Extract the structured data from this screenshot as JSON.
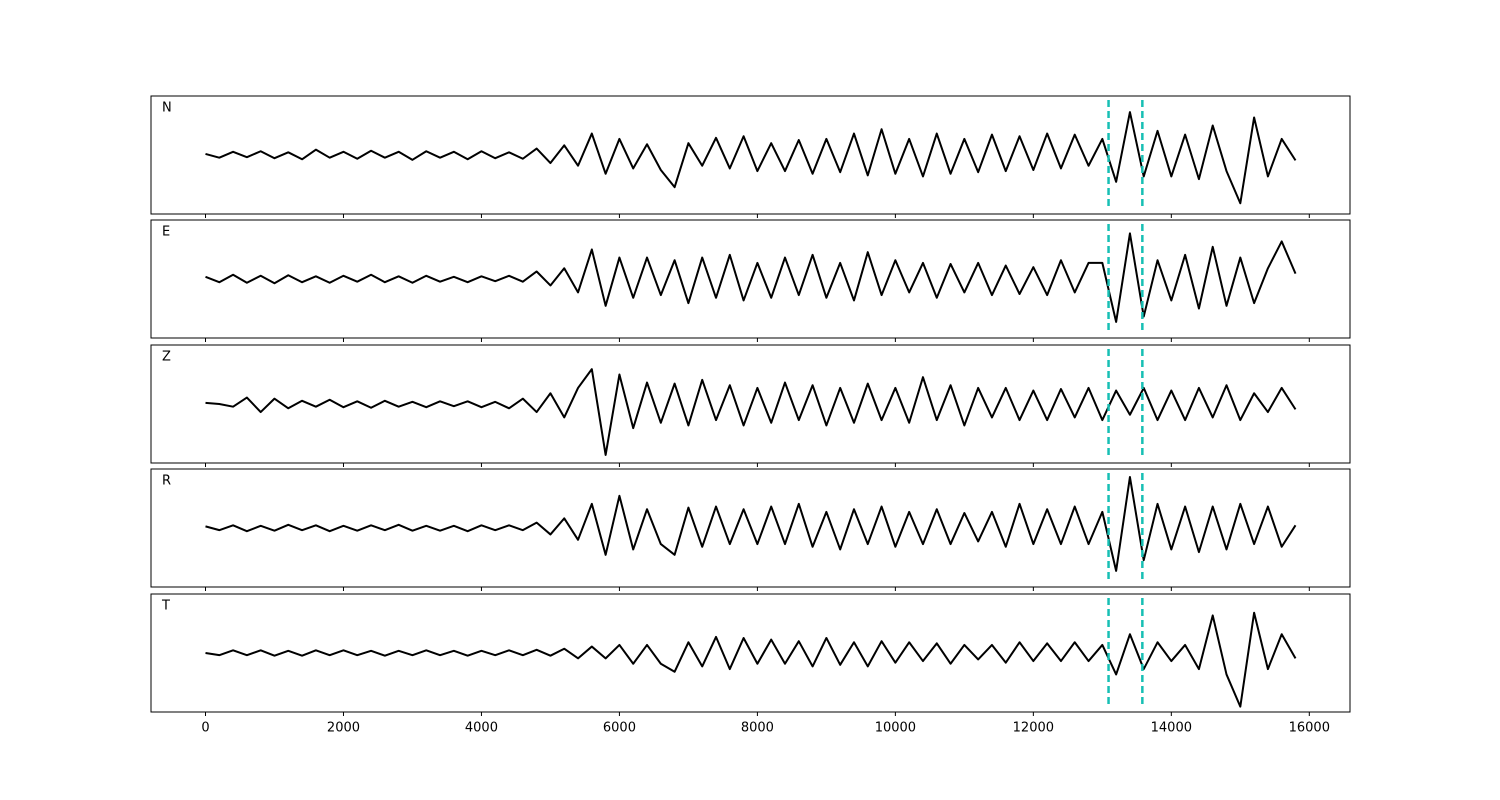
{
  "chart_data": [
    {
      "type": "line",
      "title": "N",
      "color": "#000000",
      "vline_color": "#17bfb4",
      "vlines": [
        13090,
        13580
      ],
      "xlim": [
        -790,
        16590
      ],
      "ylim": [
        -1.1,
        1.1
      ],
      "xticks": [
        0,
        2000,
        4000,
        6000,
        8000,
        10000,
        12000,
        14000,
        16000
      ],
      "xtick_labels": false,
      "x": [
        0,
        200,
        400,
        600,
        800,
        1000,
        1200,
        1400,
        1600,
        1800,
        2000,
        2200,
        2400,
        2600,
        2800,
        3000,
        3200,
        3400,
        3600,
        3800,
        4000,
        4200,
        4400,
        4600,
        4800,
        5000,
        5200,
        5400,
        5600,
        5800,
        6000,
        6200,
        6400,
        6600,
        6800,
        7000,
        7200,
        7400,
        7600,
        7800,
        8000,
        8200,
        8400,
        8600,
        8800,
        9000,
        9200,
        9400,
        9600,
        9800,
        10000,
        10200,
        10400,
        10600,
        10800,
        11000,
        11200,
        11400,
        11600,
        11800,
        12000,
        12200,
        12400,
        12600,
        12800,
        13000,
        13200,
        13400,
        13600,
        13800,
        14000,
        14200,
        14400,
        14600,
        14800,
        15000,
        15200,
        15400,
        15600,
        15800
      ],
      "values": [
        0.02,
        -0.05,
        0.06,
        -0.04,
        0.07,
        -0.06,
        0.05,
        -0.08,
        0.1,
        -0.05,
        0.06,
        -0.07,
        0.08,
        -0.05,
        0.06,
        -0.09,
        0.07,
        -0.05,
        0.06,
        -0.08,
        0.07,
        -0.06,
        0.05,
        -0.07,
        0.12,
        -0.15,
        0.18,
        -0.2,
        0.4,
        -0.35,
        0.3,
        -0.25,
        0.2,
        -0.28,
        -0.6,
        0.22,
        -0.2,
        0.32,
        -0.25,
        0.35,
        -0.3,
        0.22,
        -0.3,
        0.28,
        -0.35,
        0.3,
        -0.32,
        0.4,
        -0.38,
        0.48,
        -0.35,
        0.3,
        -0.4,
        0.4,
        -0.35,
        0.3,
        -0.32,
        0.38,
        -0.3,
        0.35,
        -0.28,
        0.4,
        -0.25,
        0.38,
        -0.2,
        0.3,
        -0.5,
        0.8,
        -0.4,
        0.45,
        -0.4,
        0.38,
        -0.45,
        0.55,
        -0.3,
        -0.9,
        0.7,
        -0.4,
        0.3,
        -0.1
      ]
    },
    {
      "type": "line",
      "title": "E",
      "color": "#000000",
      "vline_color": "#17bfb4",
      "vlines": [
        13090,
        13580
      ],
      "xlim": [
        -790,
        16590
      ],
      "ylim": [
        -1.1,
        1.1
      ],
      "xticks": [
        0,
        2000,
        4000,
        6000,
        8000,
        10000,
        12000,
        14000,
        16000
      ],
      "xtick_labels": false,
      "x": [
        0,
        200,
        400,
        600,
        800,
        1000,
        1200,
        1400,
        1600,
        1800,
        2000,
        2200,
        2400,
        2600,
        2800,
        3000,
        3200,
        3400,
        3600,
        3800,
        4000,
        4200,
        4400,
        4600,
        4800,
        5000,
        5200,
        5400,
        5600,
        5800,
        6000,
        6200,
        6400,
        6600,
        6800,
        7000,
        7200,
        7400,
        7600,
        7800,
        8000,
        8200,
        8400,
        8600,
        8800,
        9000,
        9200,
        9400,
        9600,
        9800,
        10000,
        10200,
        10400,
        10600,
        10800,
        11000,
        11200,
        11400,
        11600,
        11800,
        12000,
        12200,
        12400,
        12600,
        12800,
        13000,
        13200,
        13400,
        13600,
        13800,
        14000,
        14200,
        14400,
        14600,
        14800,
        15000,
        15200,
        15400,
        15600,
        15800
      ],
      "values": [
        0.04,
        -0.06,
        0.08,
        -0.07,
        0.06,
        -0.08,
        0.07,
        -0.06,
        0.05,
        -0.07,
        0.06,
        -0.05,
        0.08,
        -0.06,
        0.05,
        -0.07,
        0.06,
        -0.05,
        0.04,
        -0.06,
        0.05,
        -0.04,
        0.06,
        -0.05,
        0.14,
        -0.12,
        0.2,
        -0.25,
        0.55,
        -0.5,
        0.4,
        -0.35,
        0.4,
        -0.3,
        0.35,
        -0.45,
        0.4,
        -0.35,
        0.45,
        -0.4,
        0.3,
        -0.35,
        0.4,
        -0.3,
        0.45,
        -0.35,
        0.3,
        -0.4,
        0.5,
        -0.3,
        0.35,
        -0.25,
        0.3,
        -0.35,
        0.28,
        -0.25,
        0.3,
        -0.3,
        0.25,
        -0.28,
        0.22,
        -0.3,
        0.35,
        -0.25,
        0.3,
        0.3,
        -0.8,
        0.85,
        -0.7,
        0.35,
        -0.4,
        0.45,
        -0.55,
        0.6,
        -0.5,
        0.4,
        -0.45,
        0.2,
        0.7,
        0.1
      ]
    },
    {
      "type": "line",
      "title": "Z",
      "color": "#000000",
      "vline_color": "#17bfb4",
      "vlines": [
        13090,
        13580
      ],
      "xlim": [
        -790,
        16590
      ],
      "ylim": [
        -1.1,
        1.1
      ],
      "xticks": [
        0,
        2000,
        4000,
        6000,
        8000,
        10000,
        12000,
        14000,
        16000
      ],
      "xtick_labels": false,
      "x": [
        0,
        200,
        400,
        600,
        800,
        1000,
        1200,
        1400,
        1600,
        1800,
        2000,
        2200,
        2400,
        2600,
        2800,
        3000,
        3200,
        3400,
        3600,
        3800,
        4000,
        4200,
        4400,
        4600,
        4800,
        5000,
        5200,
        5400,
        5600,
        5800,
        6000,
        6200,
        6400,
        6600,
        6800,
        7000,
        7200,
        7400,
        7600,
        7800,
        8000,
        8200,
        8400,
        8600,
        8800,
        9000,
        9200,
        9400,
        9600,
        9800,
        10000,
        10200,
        10400,
        10600,
        10800,
        11000,
        11200,
        11400,
        11600,
        11800,
        12000,
        12200,
        12400,
        12600,
        12800,
        13000,
        13200,
        13400,
        13600,
        13800,
        14000,
        14200,
        14400,
        14600,
        14800,
        15000,
        15200,
        15400,
        15600,
        15800
      ],
      "values": [
        0.02,
        0.0,
        -0.05,
        0.12,
        -0.15,
        0.1,
        -0.08,
        0.06,
        -0.05,
        0.08,
        -0.06,
        0.05,
        -0.07,
        0.06,
        -0.05,
        0.04,
        -0.06,
        0.05,
        -0.04,
        0.05,
        -0.06,
        0.04,
        -0.08,
        0.1,
        -0.15,
        0.2,
        -0.25,
        0.3,
        0.65,
        -0.95,
        0.55,
        -0.45,
        0.4,
        -0.35,
        0.38,
        -0.4,
        0.45,
        -0.3,
        0.35,
        -0.4,
        0.3,
        -0.35,
        0.4,
        -0.3,
        0.35,
        -0.4,
        0.3,
        -0.35,
        0.38,
        -0.3,
        0.3,
        -0.35,
        0.5,
        -0.3,
        0.35,
        -0.4,
        0.3,
        -0.25,
        0.3,
        -0.3,
        0.25,
        -0.3,
        0.28,
        -0.25,
        0.3,
        -0.3,
        0.25,
        -0.2,
        0.3,
        -0.3,
        0.25,
        -0.3,
        0.3,
        -0.25,
        0.35,
        -0.3,
        0.2,
        -0.15,
        0.3,
        -0.1
      ]
    },
    {
      "type": "line",
      "title": "R",
      "color": "#000000",
      "vline_color": "#17bfb4",
      "vlines": [
        13090,
        13580
      ],
      "xlim": [
        -790,
        16590
      ],
      "ylim": [
        -1.1,
        1.1
      ],
      "xticks": [
        0,
        2000,
        4000,
        6000,
        8000,
        10000,
        12000,
        14000,
        16000
      ],
      "xtick_labels": false,
      "x": [
        0,
        200,
        400,
        600,
        800,
        1000,
        1200,
        1400,
        1600,
        1800,
        2000,
        2200,
        2400,
        2600,
        2800,
        3000,
        3200,
        3400,
        3600,
        3800,
        4000,
        4200,
        4400,
        4600,
        4800,
        5000,
        5200,
        5400,
        5600,
        5800,
        6000,
        6200,
        6400,
        6600,
        6800,
        7000,
        7200,
        7400,
        7600,
        7800,
        8000,
        8200,
        8400,
        8600,
        8800,
        9000,
        9200,
        9400,
        9600,
        9800,
        10000,
        10200,
        10400,
        10600,
        10800,
        11000,
        11200,
        11400,
        11600,
        11800,
        12000,
        12200,
        12400,
        12600,
        12800,
        13000,
        13200,
        13400,
        13600,
        13800,
        14000,
        14200,
        14400,
        14600,
        14800,
        15000,
        15200,
        15400,
        15600,
        15800
      ],
      "values": [
        0.03,
        -0.04,
        0.05,
        -0.06,
        0.04,
        -0.05,
        0.06,
        -0.04,
        0.05,
        -0.06,
        0.04,
        -0.05,
        0.05,
        -0.04,
        0.06,
        -0.05,
        0.04,
        -0.05,
        0.04,
        -0.06,
        0.05,
        -0.04,
        0.05,
        -0.04,
        0.1,
        -0.12,
        0.18,
        -0.22,
        0.45,
        -0.5,
        0.6,
        -0.4,
        0.35,
        -0.3,
        -0.5,
        0.38,
        -0.35,
        0.4,
        -0.3,
        0.35,
        -0.3,
        0.4,
        -0.3,
        0.45,
        -0.35,
        0.3,
        -0.4,
        0.35,
        -0.3,
        0.4,
        -0.35,
        0.3,
        -0.3,
        0.35,
        -0.3,
        0.28,
        -0.25,
        0.3,
        -0.35,
        0.45,
        -0.3,
        0.35,
        -0.3,
        0.4,
        -0.3,
        0.3,
        -0.8,
        0.95,
        -0.6,
        0.45,
        -0.4,
        0.4,
        -0.45,
        0.4,
        -0.4,
        0.45,
        -0.3,
        0.4,
        -0.35,
        0.05
      ]
    },
    {
      "type": "line",
      "title": "T",
      "color": "#000000",
      "vline_color": "#17bfb4",
      "vlines": [
        13090,
        13580
      ],
      "xlim": [
        -790,
        16590
      ],
      "ylim": [
        -1.1,
        1.1
      ],
      "xticks": [
        0,
        2000,
        4000,
        6000,
        8000,
        10000,
        12000,
        14000,
        16000
      ],
      "xtick_labels": true,
      "x": [
        0,
        200,
        400,
        600,
        800,
        1000,
        1200,
        1400,
        1600,
        1800,
        2000,
        2200,
        2400,
        2600,
        2800,
        3000,
        3200,
        3400,
        3600,
        3800,
        4000,
        4200,
        4400,
        4600,
        4800,
        5000,
        5200,
        5400,
        5600,
        5800,
        6000,
        6200,
        6400,
        6600,
        6800,
        7000,
        7200,
        7400,
        7600,
        7800,
        8000,
        8200,
        8400,
        8600,
        8800,
        9000,
        9200,
        9400,
        9600,
        9800,
        10000,
        10200,
        10400,
        10600,
        10800,
        11000,
        11200,
        11400,
        11600,
        11800,
        12000,
        12200,
        12400,
        12600,
        12800,
        13000,
        13200,
        13400,
        13600,
        13800,
        14000,
        14200,
        14400,
        14600,
        14800,
        15000,
        15200,
        15400,
        15600,
        15800
      ],
      "values": [
        0.0,
        -0.04,
        0.05,
        -0.04,
        0.05,
        -0.05,
        0.04,
        -0.05,
        0.05,
        -0.04,
        0.05,
        -0.04,
        0.04,
        -0.05,
        0.04,
        -0.04,
        0.05,
        -0.04,
        0.04,
        -0.05,
        0.04,
        -0.04,
        0.05,
        -0.04,
        0.06,
        -0.05,
        0.08,
        -0.1,
        0.12,
        -0.1,
        0.15,
        -0.2,
        0.15,
        -0.2,
        -0.35,
        0.2,
        -0.25,
        0.3,
        -0.3,
        0.28,
        -0.2,
        0.25,
        -0.2,
        0.22,
        -0.25,
        0.28,
        -0.22,
        0.2,
        -0.25,
        0.22,
        -0.18,
        0.2,
        -0.15,
        0.18,
        -0.2,
        0.15,
        -0.12,
        0.15,
        -0.18,
        0.2,
        -0.15,
        0.18,
        -0.15,
        0.2,
        -0.15,
        0.15,
        -0.4,
        0.35,
        -0.3,
        0.2,
        -0.15,
        0.15,
        -0.3,
        0.7,
        -0.4,
        -1.0,
        0.75,
        -0.3,
        0.35,
        -0.1
      ]
    }
  ]
}
